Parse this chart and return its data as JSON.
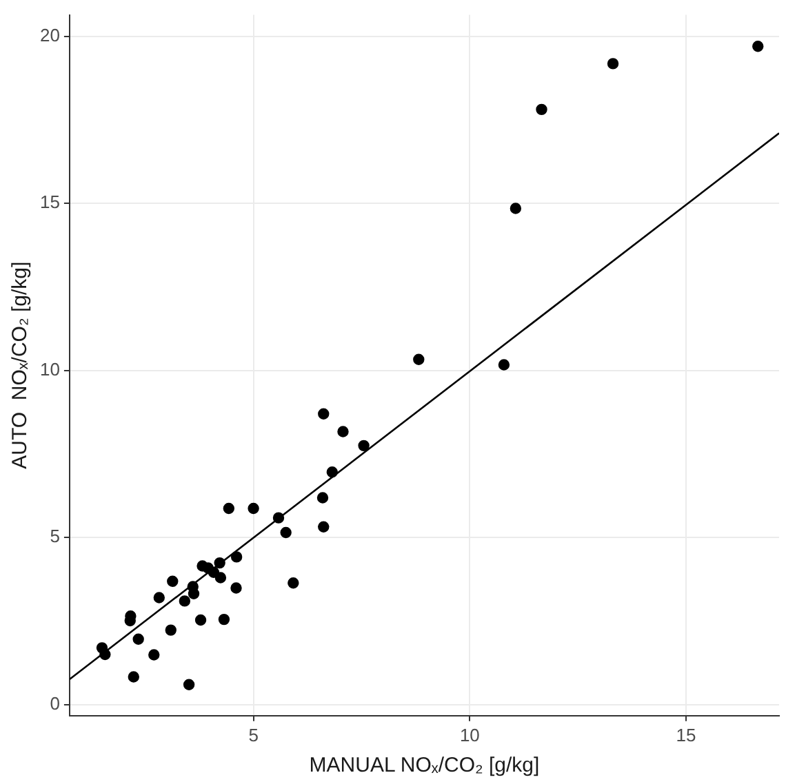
{
  "chart_data": {
    "type": "scatter",
    "xlabel": "MANUAL NOₓ/CO₂ [g/kg]",
    "ylabel": "AUTO  NOₓ/CO₂ [g/kg]",
    "xlim": [
      0.75,
      17.15
    ],
    "ylim": [
      -0.33,
      20.64
    ],
    "xticks": [
      5,
      10,
      15
    ],
    "yticks": [
      0,
      5,
      10,
      15,
      20
    ],
    "grid": true,
    "series": [
      {
        "marker": "circle",
        "color": "#000000",
        "x": [
          1.5,
          1.57,
          2.16,
          2.15,
          2.34,
          2.23,
          2.7,
          2.82,
          3.13,
          3.09,
          3.41,
          3.6,
          3.62,
          3.51,
          3.78,
          3.82,
          3.95,
          4.08,
          4.24,
          4.22,
          4.32,
          4.43,
          4.61,
          4.6,
          5.0,
          5.58,
          5.75,
          5.92,
          6.6,
          6.62,
          6.82,
          8.82,
          10.79,
          6.62,
          7.07,
          7.55,
          11.66,
          13.31,
          16.66,
          11.06
        ],
        "values": [
          1.7,
          1.5,
          2.65,
          2.51,
          1.96,
          0.83,
          1.49,
          3.2,
          3.69,
          2.23,
          3.1,
          3.53,
          3.32,
          0.6,
          2.53,
          4.15,
          4.09,
          3.96,
          3.8,
          4.24,
          2.55,
          5.87,
          4.42,
          3.49,
          5.87,
          5.59,
          5.15,
          3.64,
          6.19,
          5.32,
          6.96,
          10.33,
          10.17,
          8.7,
          8.17,
          7.75,
          17.81,
          19.18,
          19.7,
          14.85
        ]
      },
      {
        "type": "line",
        "marker": "none",
        "color": "#000000",
        "x": [
          0.75,
          17.15
        ],
        "values": [
          0.76,
          17.1
        ]
      }
    ]
  }
}
